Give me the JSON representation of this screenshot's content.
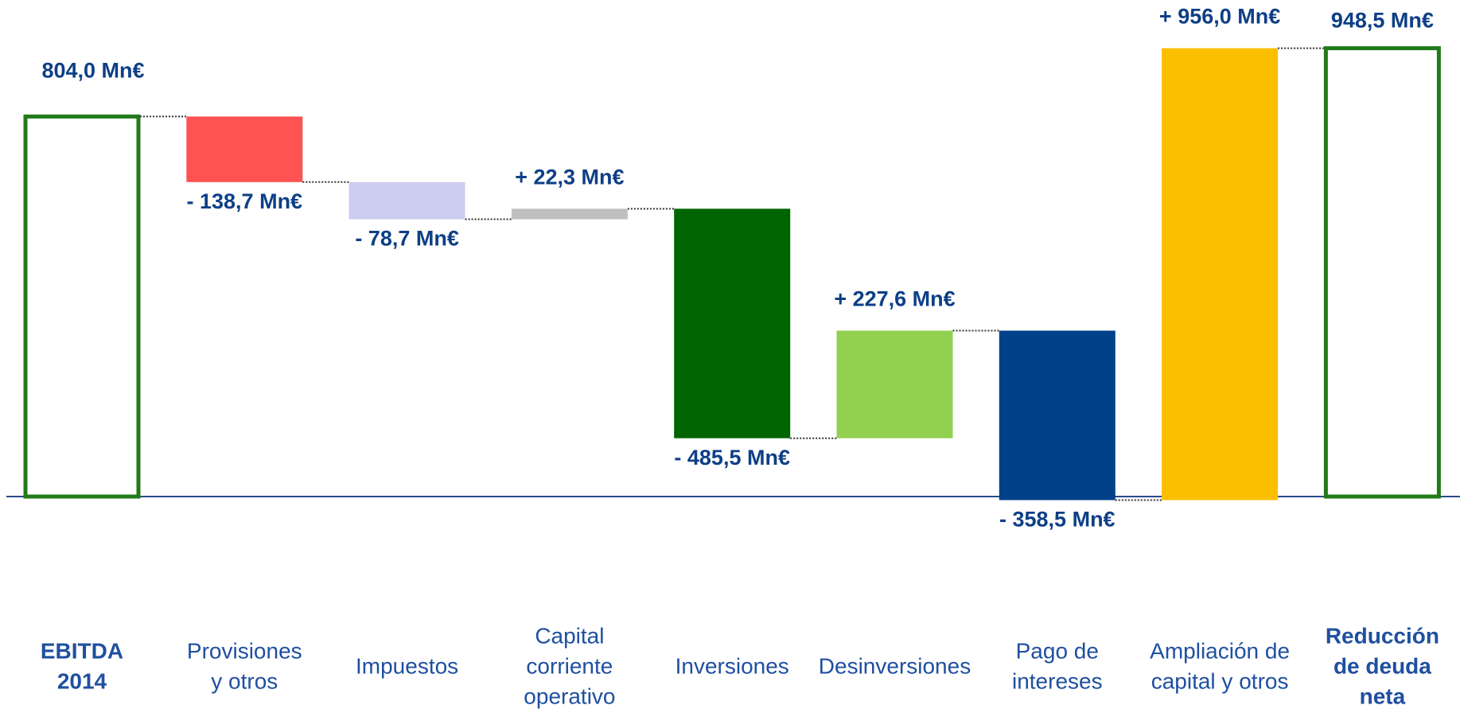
{
  "chart_data": {
    "type": "waterfall",
    "categories": [
      [
        "EBITDA",
        "2014"
      ],
      [
        "Provisiones",
        "y otros"
      ],
      [
        "Impuestos"
      ],
      [
        "Capital",
        "corriente",
        "operativo"
      ],
      [
        "Inversiones"
      ],
      [
        "Desinversiones"
      ],
      [
        "Pago de",
        "intereses"
      ],
      [
        "Ampliación de",
        "capital y otros"
      ],
      [
        "Reducción",
        "de deuda",
        "neta"
      ]
    ],
    "values": [
      804.0,
      -138.7,
      -78.7,
      22.3,
      -485.5,
      227.6,
      -358.5,
      956.0,
      948.5
    ],
    "value_labels": [
      "804,0 Mn€",
      "- 138,7 Mn€",
      "- 78,7 Mn€",
      "+ 22,3 Mn€",
      "- 485,5 Mn€",
      "+ 227,6 Mn€",
      "- 358,5 Mn€",
      "+ 956,0 Mn€",
      "948,5 Mn€"
    ],
    "measure": [
      "absolute",
      "relative",
      "relative",
      "relative",
      "relative",
      "relative",
      "relative",
      "relative",
      "absolute"
    ],
    "colors": [
      "#227a1a",
      "#ff5252",
      "#cdcdf0",
      "#bfbfbf",
      "#006400",
      "#92d050",
      "#00418a",
      "#fbbf00",
      "#227a1a"
    ]
  }
}
